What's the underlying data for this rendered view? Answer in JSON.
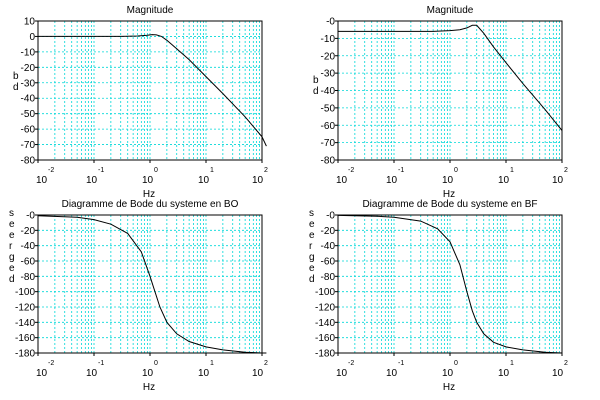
{
  "chart_data": [
    {
      "type": "line",
      "title": "Magnitude",
      "xlabel": "Hz",
      "ylabel_chars": [
        "d",
        "b"
      ],
      "xscale": "log",
      "xlim_exp": [
        -2,
        2
      ],
      "x_tick_labels": [
        {
          "base": "10",
          "exp": "-2"
        },
        {
          "base": "10",
          "exp": "-1"
        },
        {
          "base": "10",
          "exp": "0"
        },
        {
          "base": "10",
          "exp": "1"
        },
        {
          "base": "10",
          "exp": "2"
        }
      ],
      "ylim": [
        -80,
        10
      ],
      "y_ticks": [
        10,
        0,
        -10,
        -20,
        -30,
        -40,
        -50,
        -60,
        -70,
        -80
      ],
      "y_tick_labels": [
        "10",
        "0",
        "-10",
        "-20",
        "-30",
        "-40",
        "-50",
        "-60",
        "-70",
        "-80"
      ],
      "grid": true,
      "series": [
        {
          "x": [
            0.01,
            0.1,
            0.3,
            0.6,
            0.9,
            1.1,
            1.3,
            1.6,
            2,
            3,
            5,
            10,
            20,
            50,
            100,
            120
          ],
          "y": [
            0,
            0,
            0,
            0.3,
            0.8,
            1.2,
            1.0,
            0.0,
            -2.5,
            -8,
            -15,
            -26,
            -37,
            -52,
            -65,
            -71
          ]
        }
      ]
    },
    {
      "type": "line",
      "title": "Magnitude",
      "xlabel": "Hz",
      "ylabel_chars": [
        "d",
        "b"
      ],
      "xscale": "log",
      "xlim_exp": [
        -2,
        2
      ],
      "x_tick_labels": [
        {
          "base": "10",
          "exp": "-2"
        },
        {
          "base": "10",
          "exp": "-1"
        },
        {
          "base": "10",
          "exp": "0"
        },
        {
          "base": "10",
          "exp": "1"
        },
        {
          "base": "10",
          "exp": "2"
        }
      ],
      "ylim": [
        -80,
        0
      ],
      "y_ticks": [
        0,
        -10,
        -20,
        -30,
        -40,
        -50,
        -60,
        -70,
        -80
      ],
      "y_tick_labels": [
        "-0",
        "-10",
        "-20",
        "-30",
        "-40",
        "-50",
        "-60",
        "-70",
        "-80"
      ],
      "grid": true,
      "series": [
        {
          "x": [
            0.01,
            0.1,
            0.5,
            1,
            1.5,
            2,
            2.5,
            3,
            4,
            6,
            10,
            20,
            50,
            100
          ],
          "y": [
            -6,
            -6,
            -6,
            -5.5,
            -5,
            -4,
            -2.5,
            -2.5,
            -7,
            -15,
            -24,
            -36,
            -51,
            -63
          ]
        }
      ]
    },
    {
      "type": "line",
      "title": "Diagramme de Bode du systeme en BO",
      "xlabel": "Hz",
      "ylabel_chars": [
        "d",
        "e",
        "g",
        "r",
        "e",
        "e",
        "s"
      ],
      "xscale": "log",
      "xlim_exp": [
        -2,
        2
      ],
      "x_tick_labels": [
        {
          "base": "10",
          "exp": "-2"
        },
        {
          "base": "10",
          "exp": "-1"
        },
        {
          "base": "10",
          "exp": "0"
        },
        {
          "base": "10",
          "exp": "1"
        },
        {
          "base": "10",
          "exp": "2"
        }
      ],
      "ylim": [
        -180,
        0
      ],
      "y_ticks": [
        0,
        -20,
        -40,
        -60,
        -80,
        -100,
        -120,
        -140,
        -160,
        -180
      ],
      "y_tick_labels": [
        "-0",
        "-20",
        "-40",
        "-60",
        "-80",
        "-100",
        "-120",
        "-140",
        "-160",
        "-180"
      ],
      "grid": true,
      "series": [
        {
          "x": [
            0.01,
            0.05,
            0.1,
            0.2,
            0.4,
            0.7,
            1,
            1.5,
            2,
            3,
            5,
            10,
            20,
            50,
            100,
            120
          ],
          "y": [
            -1,
            -3,
            -6,
            -12,
            -24,
            -48,
            -80,
            -120,
            -140,
            -155,
            -165,
            -172,
            -176,
            -179,
            -180,
            -180
          ]
        }
      ]
    },
    {
      "type": "line",
      "title": "Diagramme de Bode du systeme en BF",
      "xlabel": "Hz",
      "ylabel_chars": [
        "d",
        "e",
        "g",
        "r",
        "e",
        "e",
        "s"
      ],
      "xscale": "log",
      "xlim_exp": [
        -2,
        2
      ],
      "x_tick_labels": [
        {
          "base": "10",
          "exp": "-2"
        },
        {
          "base": "10",
          "exp": "-1"
        },
        {
          "base": "10",
          "exp": "0"
        },
        {
          "base": "10",
          "exp": "1"
        },
        {
          "base": "10",
          "exp": "2"
        }
      ],
      "ylim": [
        -180,
        0
      ],
      "y_ticks": [
        0,
        -20,
        -40,
        -60,
        -80,
        -100,
        -120,
        -140,
        -160,
        -180
      ],
      "y_tick_labels": [
        "-0",
        "-20",
        "-40",
        "-60",
        "-80",
        "-100",
        "-120",
        "-140",
        "-160",
        "-180"
      ],
      "grid": true,
      "series": [
        {
          "x": [
            0.01,
            0.05,
            0.1,
            0.3,
            0.6,
            1,
            1.5,
            2,
            2.5,
            3,
            4,
            6,
            10,
            20,
            50,
            100
          ],
          "y": [
            -0.5,
            -1.5,
            -3,
            -8,
            -18,
            -35,
            -65,
            -100,
            -125,
            -140,
            -155,
            -166,
            -172,
            -176,
            -179,
            -180
          ]
        }
      ]
    }
  ]
}
